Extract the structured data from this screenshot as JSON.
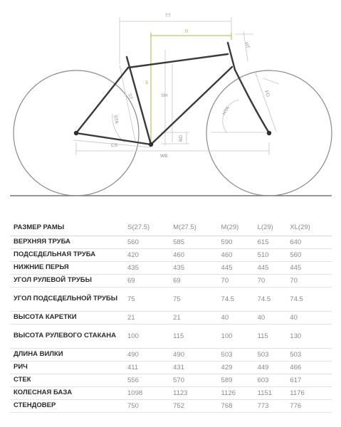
{
  "diagram": {
    "labels": {
      "tt": "TT",
      "r": "R",
      "ht": "HT",
      "s": "S",
      "st": "ST",
      "sh": "SH",
      "sta": "STA",
      "hta": "HTA",
      "fo": "FO",
      "cs": "CS",
      "bd": "BD",
      "wb": "WB"
    },
    "colors": {
      "frame": "#3a3a3a",
      "wheel": "#8a8a8a",
      "dimension": "#c0c0c0",
      "accent": "#9dc23a",
      "ground": "#777777"
    }
  },
  "table": {
    "header": {
      "label": "РАЗМЕР РАМЫ",
      "sizes": [
        "S(27.5)",
        "M(27.5)",
        "M(29)",
        "L(29)",
        "XL(29)"
      ]
    },
    "rows": [
      {
        "label": "ВЕРХНЯЯ ТРУБА",
        "values": [
          "560",
          "585",
          "590",
          "615",
          "640"
        ]
      },
      {
        "label": "ПОДСЕДЕЛЬНАЯ ТРУБА",
        "values": [
          "420",
          "460",
          "460",
          "510",
          "560"
        ]
      },
      {
        "label": "НИЖНИЕ ПЕРЬЯ",
        "values": [
          "435",
          "435",
          "445",
          "445",
          "445"
        ]
      },
      {
        "label": "УГОЛ РУЛЕВОЙ ТРУБЫ",
        "values": [
          "69",
          "69",
          "70",
          "70",
          "70"
        ]
      },
      {
        "label": "УГОЛ ПОДСЕДЕЛЬНОЙ ТРУБЫ",
        "values": [
          "75",
          "75",
          "74.5",
          "74.5",
          "74.5"
        ]
      },
      {
        "label": "ВЫСОТА КАРЕТКИ",
        "values": [
          "21",
          "21",
          "40",
          "40",
          "40"
        ]
      },
      {
        "label": "ВЫСОТА РУЛЕВОГО СТАКАНА",
        "values": [
          "100",
          "115",
          "100",
          "115",
          "130"
        ]
      },
      {
        "label": "ДЛИНА ВИЛКИ",
        "values": [
          "490",
          "490",
          "503",
          "503",
          "503"
        ]
      },
      {
        "label": "РИЧ",
        "values": [
          "411",
          "431",
          "429",
          "449",
          "466"
        ]
      },
      {
        "label": "СТЕК",
        "values": [
          "556",
          "570",
          "589",
          "603",
          "617"
        ]
      },
      {
        "label": "КОЛЕСНАЯ БАЗА",
        "values": [
          "1098",
          "1123",
          "1126",
          "1151",
          "1176"
        ]
      },
      {
        "label": "СТЕНДОВЕР",
        "values": [
          "750",
          "752",
          "768",
          "773",
          "776"
        ]
      }
    ]
  }
}
